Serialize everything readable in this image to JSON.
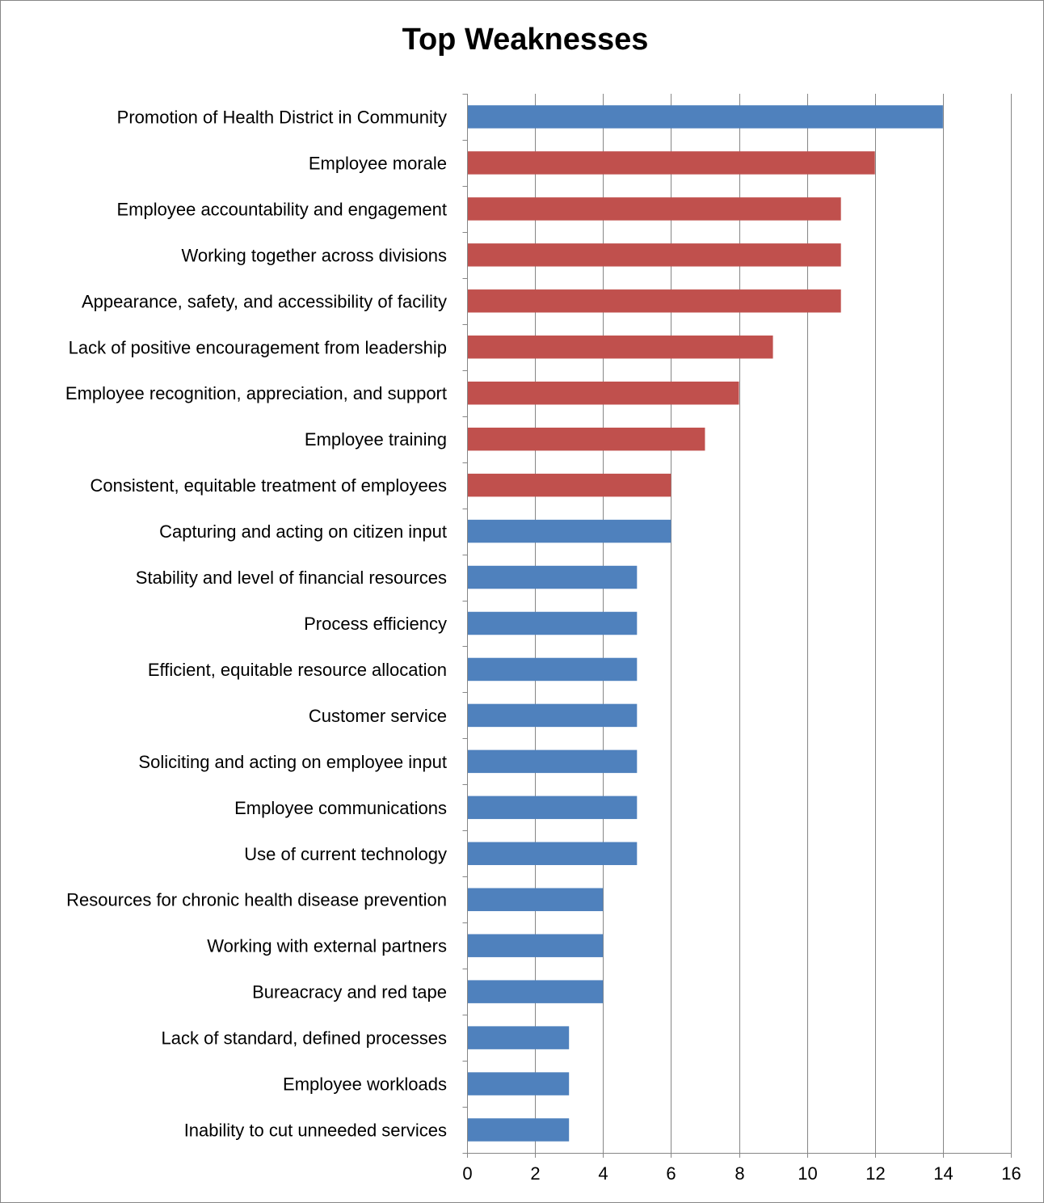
{
  "colors": {
    "blue": "#4f81bd",
    "red": "#c0504d",
    "gridline": "#868686",
    "axis": "#868686"
  },
  "chart_data": {
    "type": "bar",
    "orientation": "horizontal",
    "title": "Top Weaknesses",
    "xlabel": "",
    "ylabel": "",
    "xlim": [
      0,
      16
    ],
    "x_ticks": [
      0,
      2,
      4,
      6,
      8,
      10,
      12,
      14,
      16
    ],
    "grid": true,
    "legend": "none",
    "categories": [
      "Promotion of Health District in Community",
      "Employee morale",
      "Employee accountability and engagement",
      "Working together across divisions",
      "Appearance, safety, and accessibility of facility",
      "Lack of positive encouragement from leadership",
      "Employee recognition, appreciation, and support",
      "Employee training",
      "Consistent, equitable treatment of employees",
      "Capturing and acting on citizen input",
      "Stability and level of financial resources",
      "Process efficiency",
      "Efficient, equitable resource allocation",
      "Customer service",
      "Soliciting and acting on employee input",
      "Employee communications",
      "Use of current technology",
      "Resources for chronic health disease prevention",
      "Working with external partners",
      "Bureacracy and red tape",
      "Lack of standard, defined processes",
      "Employee workloads",
      "Inability to cut unneeded services"
    ],
    "values": [
      14,
      12,
      11,
      11,
      11,
      9,
      8,
      7,
      6,
      6,
      5,
      5,
      5,
      5,
      5,
      5,
      5,
      4,
      4,
      4,
      3,
      3,
      3
    ],
    "bar_colors": [
      "blue",
      "red",
      "red",
      "red",
      "red",
      "red",
      "red",
      "red",
      "red",
      "blue",
      "blue",
      "blue",
      "blue",
      "blue",
      "blue",
      "blue",
      "blue",
      "blue",
      "blue",
      "blue",
      "blue",
      "blue",
      "blue"
    ]
  }
}
